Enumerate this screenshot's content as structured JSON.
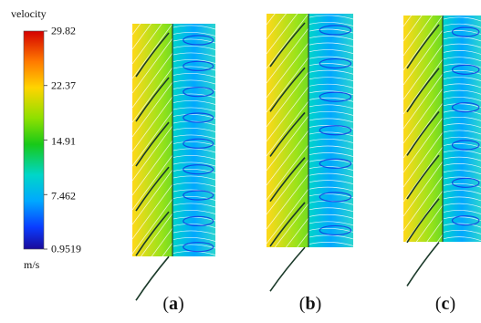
{
  "legend": {
    "title": "velocity",
    "unit": "m/s",
    "ticks": [
      "29.82",
      "22.37",
      "14.91",
      "7.462",
      "0.9519"
    ],
    "colors": [
      "#d40000",
      "#ff7a00",
      "#ffd400",
      "#8ee000",
      "#18c918",
      "#00d6c8",
      "#00a8ff",
      "#0a3cff",
      "#1a0a9a"
    ]
  },
  "panels": [
    {
      "caption_letter": "a"
    },
    {
      "caption_letter": "b"
    },
    {
      "caption_letter": "c"
    }
  ]
}
